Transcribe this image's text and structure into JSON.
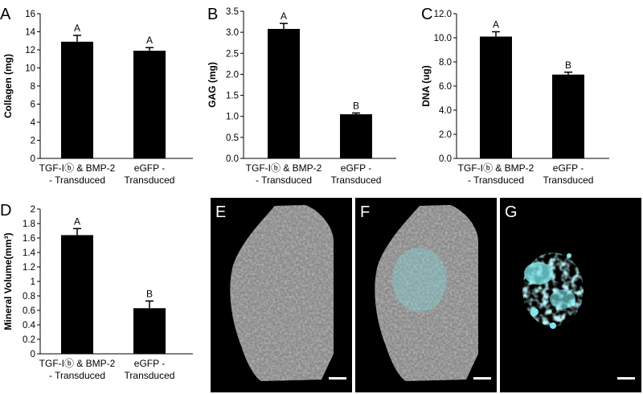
{
  "chart_data": [
    {
      "panel": "A",
      "type": "bar",
      "categories": [
        "TGF-Iⓑ & BMP-2|- Transduced",
        "eGFP -|Transduced"
      ],
      "values": [
        12.9,
        11.9
      ],
      "errors": [
        0.7,
        0.35
      ],
      "significance": [
        "A",
        "A"
      ],
      "ylabel": "Collagen (mg)",
      "ylim": [
        0,
        16
      ],
      "yticks": [
        "0",
        "2",
        "4",
        "6",
        "8",
        "10",
        "12",
        "14",
        "16"
      ],
      "colors": {
        "bar": "#000000"
      }
    },
    {
      "panel": "B",
      "type": "bar",
      "categories": [
        "TGF-Iⓑ & BMP-2|- Transduced",
        "eGFP -|Transduced"
      ],
      "values": [
        3.08,
        1.05
      ],
      "errors": [
        0.13,
        0.03
      ],
      "significance": [
        "A",
        "B"
      ],
      "ylabel": "GAG (mg)",
      "ylim": [
        0,
        3.5
      ],
      "yticks": [
        "0.0",
        "0.5",
        "1.0",
        "1.5",
        "2.0",
        "2.5",
        "3.0",
        "3.5"
      ],
      "colors": {
        "bar": "#000000"
      }
    },
    {
      "panel": "C",
      "type": "bar",
      "categories": [
        "TGF-Iⓑ & BMP-2|- Transduced",
        "eGFP -|Transduced"
      ],
      "values": [
        10.1,
        6.95
      ],
      "errors": [
        0.4,
        0.2
      ],
      "significance": [
        "A",
        "B"
      ],
      "ylabel": "DNA (ug)",
      "ylim": [
        0,
        12
      ],
      "yticks": [
        "0.0",
        "2.0",
        "4.0",
        "6.0",
        "8.0",
        "10.0",
        "12.0"
      ],
      "colors": {
        "bar": "#000000"
      }
    },
    {
      "panel": "D",
      "type": "bar",
      "categories": [
        "TGF-Iⓑ & BMP-2|- Transduced",
        "eGFP -|Transduced"
      ],
      "values": [
        1.64,
        0.63
      ],
      "errors": [
        0.09,
        0.1
      ],
      "significance": [
        "A",
        "B"
      ],
      "ylabel": "Mineral Volume(mm³)",
      "ylim": [
        0,
        2
      ],
      "yticks": [
        "0",
        "0.2",
        "0.4",
        "0.6",
        "0.8",
        "1",
        "1.2",
        "1.4",
        "1.6",
        "1.8",
        "2"
      ],
      "colors": {
        "bar": "#000000"
      }
    }
  ],
  "images": [
    {
      "letter": "E",
      "content": "micro-CT reconstruction, grey",
      "colors": {
        "background": "#000000",
        "tissue": "#8a8a8a"
      }
    },
    {
      "letter": "F",
      "content": "micro-CT reconstruction, grey with cyan overlay",
      "colors": {
        "background": "#000000",
        "tissue": "#8a8a8a",
        "mineral": "#7fe0e0"
      }
    },
    {
      "letter": "G",
      "content": "mineral only, cyan",
      "colors": {
        "background": "#000000",
        "mineral": "#7fe8ec"
      }
    }
  ]
}
